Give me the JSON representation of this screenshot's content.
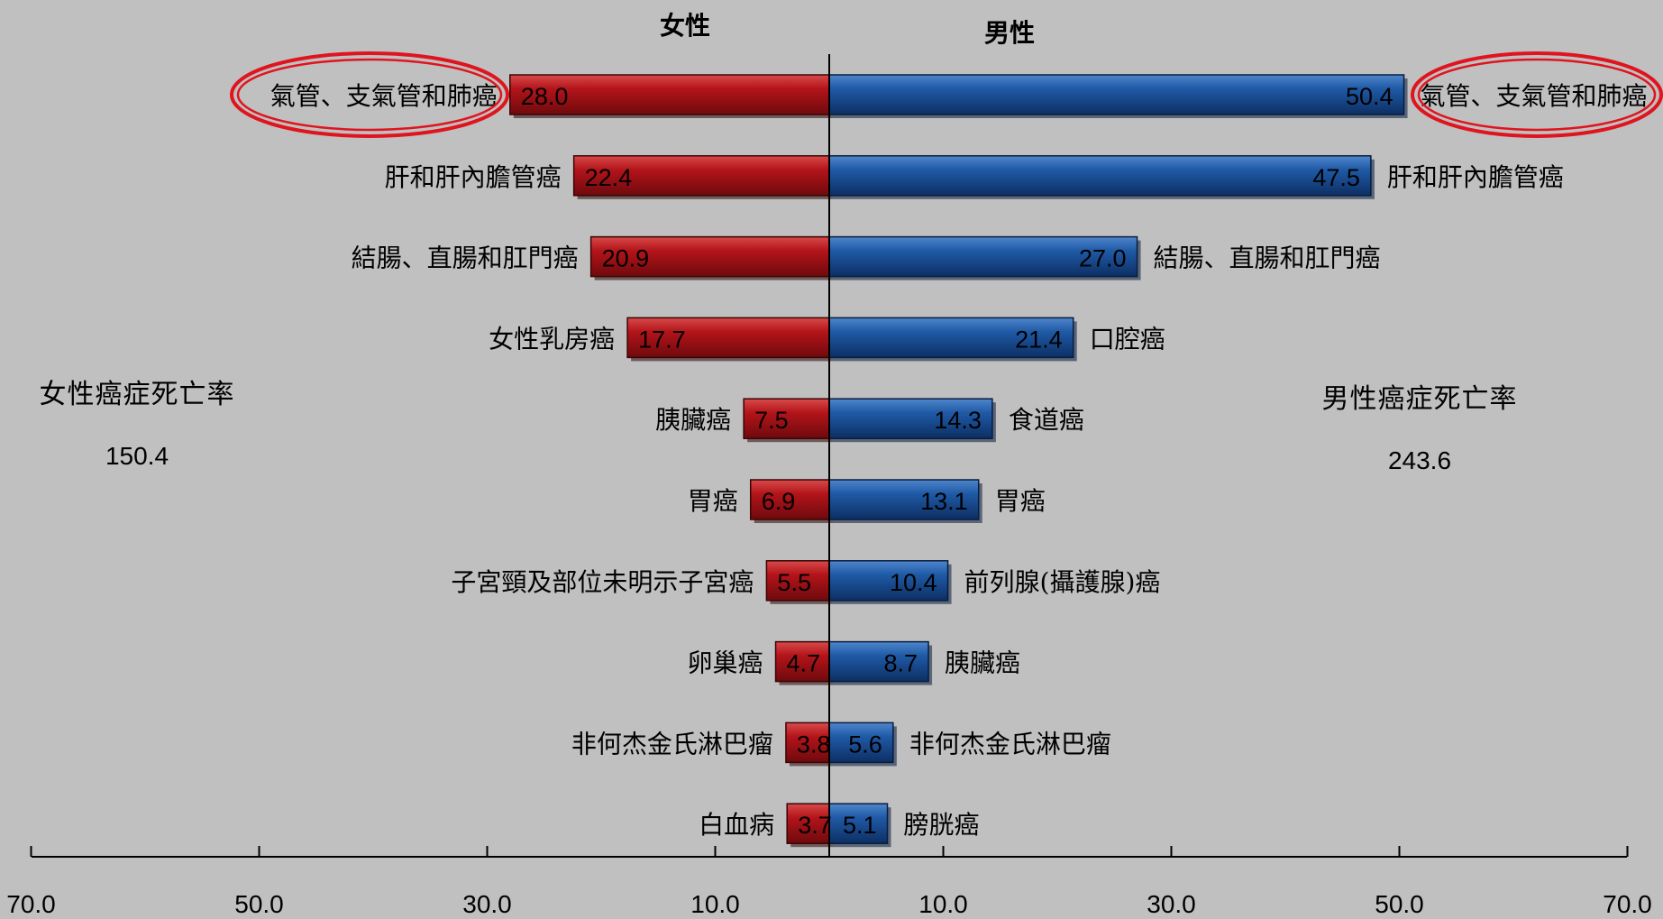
{
  "chart_data": {
    "type": "bar",
    "headers": {
      "female": "女性",
      "male": "男性"
    },
    "xlim": [
      -70,
      70
    ],
    "x_ticks": [
      "70.0",
      "50.0",
      "30.0",
      "10.0",
      "10.0",
      "30.0",
      "50.0",
      "70.0"
    ],
    "female": {
      "color": "#b0151b",
      "categories": [
        "氣管、支氣管和肺癌",
        "肝和肝內膽管癌",
        "結腸、直腸和肛門癌",
        "女性乳房癌",
        "胰臟癌",
        "胃癌",
        "子宮頸及部位未明示子宮癌",
        "卵巢癌",
        "非何杰金氏淋巴瘤",
        "白血病"
      ],
      "values": [
        28.0,
        22.4,
        20.9,
        17.7,
        7.5,
        6.9,
        5.5,
        4.7,
        3.8,
        3.7
      ],
      "value_labels": [
        "28.0",
        "22.4",
        "20.9",
        "17.7",
        "7.5",
        "6.9",
        "5.5",
        "4.7",
        "3.8",
        "3.7"
      ],
      "total_label": "女性癌症死亡率",
      "total": "150.4"
    },
    "male": {
      "color": "#1f5aa6",
      "categories": [
        "氣管、支氣管和肺癌",
        "肝和肝內膽管癌",
        "結腸、直腸和肛門癌",
        "口腔癌",
        "食道癌",
        "胃癌",
        "前列腺(攝護腺)癌",
        "胰臟癌",
        "非何杰金氏淋巴瘤",
        "膀胱癌"
      ],
      "values": [
        50.4,
        47.5,
        27.0,
        21.4,
        14.3,
        13.1,
        10.4,
        8.7,
        5.6,
        5.1
      ],
      "value_labels": [
        "50.4",
        "47.5",
        "27.0",
        "21.4",
        "14.3",
        "13.1",
        "10.4",
        "8.7",
        "5.6",
        "5.1"
      ],
      "total_label": "男性癌症死亡率",
      "total": "243.6"
    },
    "highlighted_category_index": 0,
    "highlight_color": "#e0141e"
  }
}
